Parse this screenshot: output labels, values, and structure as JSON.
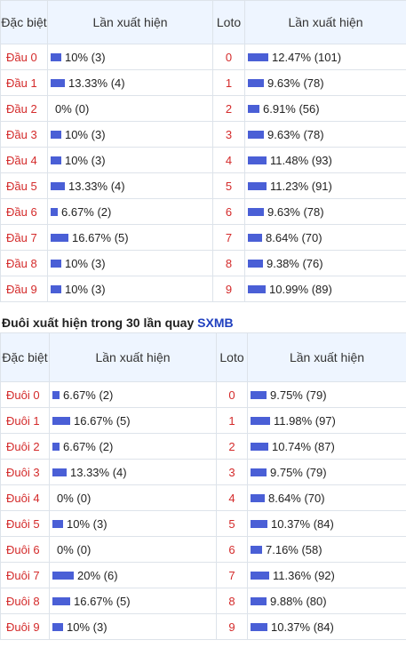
{
  "colors": {
    "label_red": "#d42a2a",
    "bar_blue": "#4a5fd6",
    "header_bg": "#eef5ff",
    "brand_blue": "#1f3fbf"
  },
  "table1": {
    "headers": {
      "col1": "Đặc biệt",
      "col2": "Lần xuất hiện",
      "col3": "Loto",
      "col4": "Lần xuất hiện"
    },
    "rows": [
      {
        "label": "Đầu 0",
        "freq": 10,
        "freq_text": "10% (3)",
        "loto": "0",
        "loto_freq": 12.47,
        "loto_text": "12.47% (101)"
      },
      {
        "label": "Đầu 1",
        "freq": 13.33,
        "freq_text": "13.33% (4)",
        "loto": "1",
        "loto_freq": 9.63,
        "loto_text": "9.63% (78)"
      },
      {
        "label": "Đầu 2",
        "freq": 0,
        "freq_text": "0% (0)",
        "loto": "2",
        "loto_freq": 6.91,
        "loto_text": "6.91% (56)"
      },
      {
        "label": "Đầu 3",
        "freq": 10,
        "freq_text": "10% (3)",
        "loto": "3",
        "loto_freq": 9.63,
        "loto_text": "9.63% (78)"
      },
      {
        "label": "Đầu 4",
        "freq": 10,
        "freq_text": "10% (3)",
        "loto": "4",
        "loto_freq": 11.48,
        "loto_text": "11.48% (93)"
      },
      {
        "label": "Đầu 5",
        "freq": 13.33,
        "freq_text": "13.33% (4)",
        "loto": "5",
        "loto_freq": 11.23,
        "loto_text": "11.23% (91)"
      },
      {
        "label": "Đầu 6",
        "freq": 6.67,
        "freq_text": "6.67% (2)",
        "loto": "6",
        "loto_freq": 9.63,
        "loto_text": "9.63% (78)"
      },
      {
        "label": "Đầu 7",
        "freq": 16.67,
        "freq_text": "16.67% (5)",
        "loto": "7",
        "loto_freq": 8.64,
        "loto_text": "8.64% (70)"
      },
      {
        "label": "Đầu 8",
        "freq": 10,
        "freq_text": "10% (3)",
        "loto": "8",
        "loto_freq": 9.38,
        "loto_text": "9.38% (76)"
      },
      {
        "label": "Đầu 9",
        "freq": 10,
        "freq_text": "10% (3)",
        "loto": "9",
        "loto_freq": 10.99,
        "loto_text": "10.99% (89)"
      }
    ]
  },
  "section2": {
    "title": "Đuôi xuất hiện trong 30 lần quay",
    "brand": "SXMB"
  },
  "table2": {
    "headers": {
      "col1": "Đặc biệt",
      "col2": "Lần xuất hiện",
      "col3": "Loto",
      "col4": "Lần xuất hiện"
    },
    "rows": [
      {
        "label": "Đuôi 0",
        "freq": 6.67,
        "freq_text": "6.67% (2)",
        "loto": "0",
        "loto_freq": 9.75,
        "loto_text": "9.75% (79)"
      },
      {
        "label": "Đuôi 1",
        "freq": 16.67,
        "freq_text": "16.67% (5)",
        "loto": "1",
        "loto_freq": 11.98,
        "loto_text": "11.98% (97)"
      },
      {
        "label": "Đuôi 2",
        "freq": 6.67,
        "freq_text": "6.67% (2)",
        "loto": "2",
        "loto_freq": 10.74,
        "loto_text": "10.74% (87)"
      },
      {
        "label": "Đuôi 3",
        "freq": 13.33,
        "freq_text": "13.33% (4)",
        "loto": "3",
        "loto_freq": 9.75,
        "loto_text": "9.75% (79)"
      },
      {
        "label": "Đuôi 4",
        "freq": 0,
        "freq_text": "0% (0)",
        "loto": "4",
        "loto_freq": 8.64,
        "loto_text": "8.64% (70)"
      },
      {
        "label": "Đuôi 5",
        "freq": 10,
        "freq_text": "10% (3)",
        "loto": "5",
        "loto_freq": 10.37,
        "loto_text": "10.37% (84)"
      },
      {
        "label": "Đuôi 6",
        "freq": 0,
        "freq_text": "0% (0)",
        "loto": "6",
        "loto_freq": 7.16,
        "loto_text": "7.16% (58)"
      },
      {
        "label": "Đuôi 7",
        "freq": 20,
        "freq_text": "20% (6)",
        "loto": "7",
        "loto_freq": 11.36,
        "loto_text": "11.36% (92)"
      },
      {
        "label": "Đuôi 8",
        "freq": 16.67,
        "freq_text": "16.67% (5)",
        "loto": "8",
        "loto_freq": 9.88,
        "loto_text": "9.88% (80)"
      },
      {
        "label": "Đuôi 9",
        "freq": 10,
        "freq_text": "10% (3)",
        "loto": "9",
        "loto_freq": 10.37,
        "loto_text": "10.37% (84)"
      }
    ]
  }
}
